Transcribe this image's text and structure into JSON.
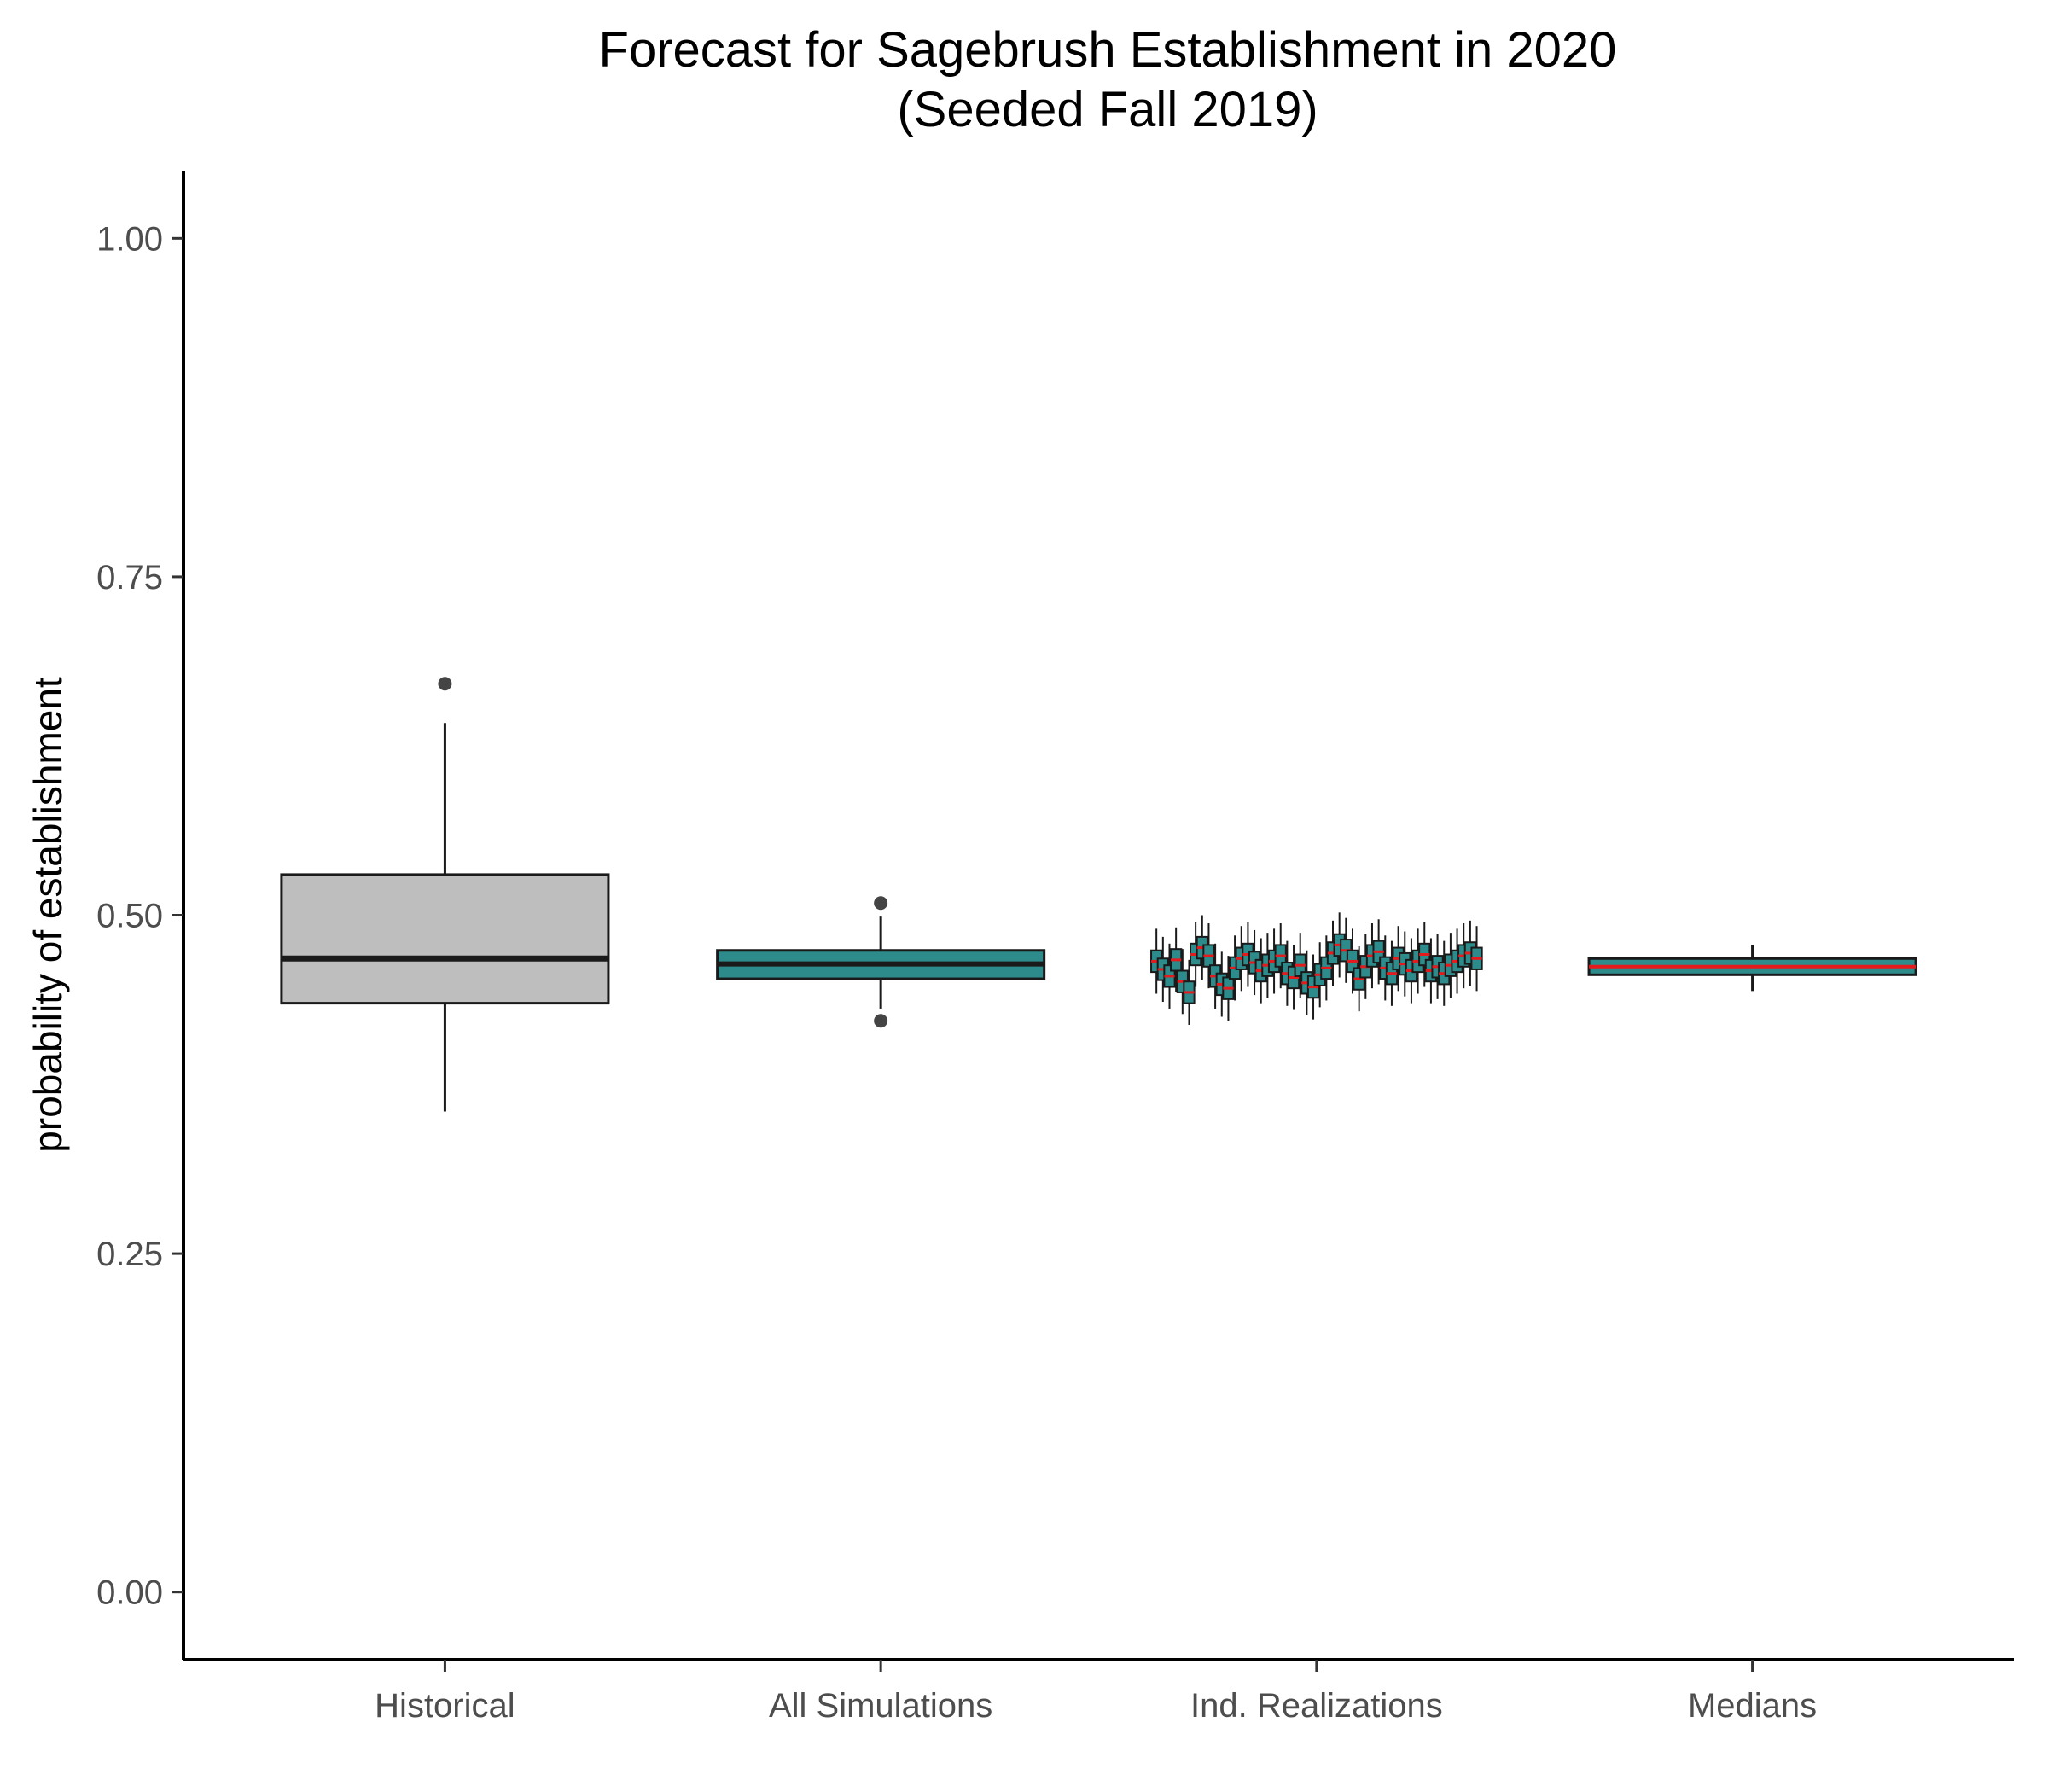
{
  "chart_data": {
    "type": "box",
    "title": "Forecast for Sagebrush Establishment in 2020",
    "subtitle": "(Seeded Fall 2019)",
    "xlabel": "",
    "ylabel": "probability of establishment",
    "ylim": [
      -0.05,
      1.05
    ],
    "yticks": [
      0.0,
      0.25,
      0.5,
      0.75,
      1.0
    ],
    "ytick_labels": [
      "0.00",
      "0.25",
      "0.50",
      "0.75",
      "1.00"
    ],
    "categories": [
      "Historical",
      "All Simulations",
      "Ind. Realizations",
      "Medians"
    ],
    "grid": false,
    "legend": "none",
    "colors": {
      "historical_fill": "#bebebe",
      "simulations_fill": "#2e8b8b",
      "median_line_red": "#e41a1c",
      "outline": "#1a1a1a",
      "outlier": "#444444"
    },
    "boxes": [
      {
        "category": "Historical",
        "min": 0.355,
        "q1": 0.435,
        "median": 0.468,
        "q3": 0.53,
        "max": 0.642,
        "outliers": [
          0.671
        ]
      },
      {
        "category": "All Simulations",
        "min": 0.431,
        "q1": 0.453,
        "median": 0.464,
        "q3": 0.474,
        "max": 0.499,
        "outliers": [
          0.509,
          0.422
        ]
      },
      {
        "category": "Medians",
        "min": 0.444,
        "q1": 0.456,
        "median": 0.462,
        "q3": 0.468,
        "max": 0.478,
        "outliers": []
      }
    ],
    "realizations": {
      "category": "Ind. Realizations",
      "count": 50,
      "medians": [
        0.466,
        0.46,
        0.455,
        0.467,
        0.451,
        0.443,
        0.471,
        0.476,
        0.47,
        0.455,
        0.449,
        0.446,
        0.461,
        0.468,
        0.471,
        0.465,
        0.459,
        0.463,
        0.466,
        0.47,
        0.457,
        0.454,
        0.463,
        0.45,
        0.447,
        0.456,
        0.461,
        0.472,
        0.478,
        0.474,
        0.466,
        0.453,
        0.462,
        0.47,
        0.473,
        0.461,
        0.457,
        0.468,
        0.464,
        0.459,
        0.466,
        0.471,
        0.459,
        0.462,
        0.457,
        0.463,
        0.466,
        0.47,
        0.472,
        0.468
      ],
      "iqr_half": 0.008,
      "whisker_half": 0.024
    }
  }
}
